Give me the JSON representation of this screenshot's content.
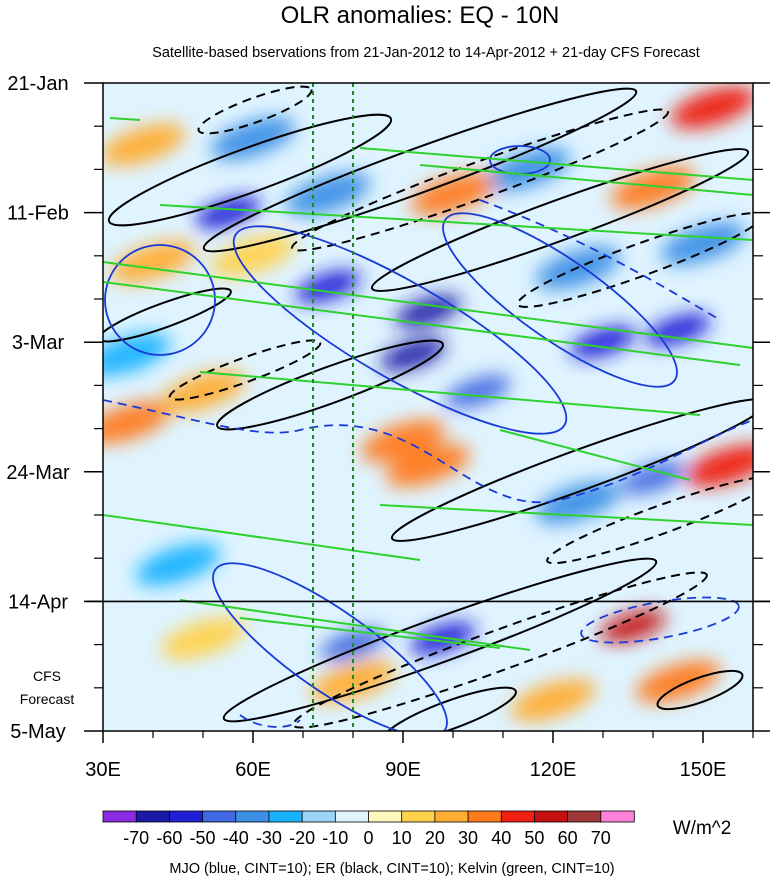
{
  "chart_data": {
    "type": "heatmap",
    "title": "OLR anomalies: EQ - 10N",
    "subtitle": "Satellite-based bservations from 21-Jan-2012 to 14-Apr-2012 + 21-day CFS Forecast",
    "x_axis": {
      "range": [
        30,
        160
      ],
      "ticks": [
        30,
        60,
        90,
        120,
        150
      ],
      "tick_labels": [
        "30E",
        "60E",
        "90E",
        "120E",
        "150E"
      ]
    },
    "y_axis": {
      "range_days_from_start": [
        0,
        105
      ],
      "ticks_days": [
        0,
        21,
        42,
        63,
        84,
        105
      ],
      "tick_labels": [
        "21-Jan",
        "11-Feb",
        "3-Mar",
        "24-Mar",
        "14-Apr",
        "5-May"
      ],
      "direction": "time increases downward"
    },
    "observation_end_day": 84,
    "forecast_label_lines": [
      "CFS",
      "Forecast"
    ],
    "reference_meridians": [
      72,
      80
    ],
    "colorbar": {
      "levels": [
        -70,
        -60,
        -50,
        -40,
        -30,
        -20,
        -10,
        0,
        10,
        20,
        30,
        40,
        50,
        60,
        70
      ],
      "labels": [
        "-70",
        "-60",
        "-50",
        "-40",
        "-30",
        "-20",
        "-10",
        "0",
        "10",
        "20",
        "30",
        "40",
        "50",
        "60",
        "70"
      ],
      "colors": [
        "#8a2be2",
        "#1a1aa6",
        "#1f1fd6",
        "#4169e1",
        "#3d8fe6",
        "#19b2ff",
        "#9cd3f7",
        "#dff4ff",
        "#fff7bb",
        "#ffd24d",
        "#ffad33",
        "#ff7a1a",
        "#ef1f12",
        "#c41010",
        "#9e3737",
        "#ff80d8"
      ],
      "units": "W/m^2"
    },
    "contours_legend": "MJO (blue, CINT=10); ER (black, CINT=10); Kelvin (green, CINT=10)",
    "contour_colors": {
      "mjo": "#1a3ad6",
      "er": "#000000",
      "kelvin": "#2ed12e"
    },
    "anomaly_features": [
      {
        "lon": 92,
        "day": 44,
        "value": -70
      },
      {
        "lon": 75,
        "day": 33,
        "value": -60
      },
      {
        "lon": 95,
        "day": 37,
        "value": -70
      },
      {
        "lon": 55,
        "day": 21,
        "value": -60
      },
      {
        "lon": 130,
        "day": 42,
        "value": -60
      },
      {
        "lon": 145,
        "day": 40,
        "value": -60
      },
      {
        "lon": 105,
        "day": 50,
        "value": -50
      },
      {
        "lon": 60,
        "day": 9,
        "value": -40
      },
      {
        "lon": 75,
        "day": 18,
        "value": -40
      },
      {
        "lon": 140,
        "day": 64,
        "value": -50
      },
      {
        "lon": 125,
        "day": 68,
        "value": -40
      },
      {
        "lon": 98,
        "day": 90,
        "value": -60
      },
      {
        "lon": 80,
        "day": 91,
        "value": -50
      },
      {
        "lon": 45,
        "day": 78,
        "value": -30
      },
      {
        "lon": 150,
        "day": 26,
        "value": -40
      },
      {
        "lon": 115,
        "day": 14,
        "value": -40
      },
      {
        "lon": 35,
        "day": 44,
        "value": -30
      },
      {
        "lon": 125,
        "day": 30,
        "value": -40
      },
      {
        "lon": 38,
        "day": 10,
        "value": 20
      },
      {
        "lon": 35,
        "day": 55,
        "value": 30
      },
      {
        "lon": 50,
        "day": 50,
        "value": 20
      },
      {
        "lon": 90,
        "day": 58,
        "value": 30
      },
      {
        "lon": 95,
        "day": 62,
        "value": 30
      },
      {
        "lon": 152,
        "day": 4,
        "value": 40
      },
      {
        "lon": 140,
        "day": 17,
        "value": 30
      },
      {
        "lon": 100,
        "day": 18,
        "value": 30
      },
      {
        "lon": 155,
        "day": 62,
        "value": 40
      },
      {
        "lon": 136,
        "day": 88,
        "value": 50
      },
      {
        "lon": 145,
        "day": 97,
        "value": 30
      },
      {
        "lon": 80,
        "day": 97,
        "value": 20
      },
      {
        "lon": 40,
        "day": 29,
        "value": 20
      },
      {
        "lon": 60,
        "day": 28,
        "value": 10
      },
      {
        "lon": 50,
        "day": 90,
        "value": 10
      },
      {
        "lon": 120,
        "day": 100,
        "value": 20
      }
    ]
  }
}
